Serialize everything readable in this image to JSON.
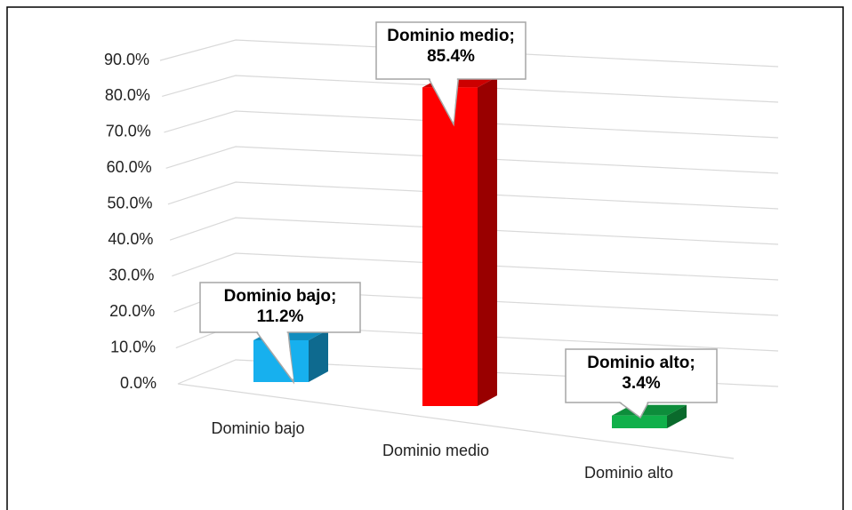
{
  "chart_data": {
    "type": "bar3d",
    "categories": [
      "Dominio bajo",
      "Dominio medio",
      "Dominio alto"
    ],
    "values": [
      11.2,
      85.4,
      3.4
    ],
    "value_labels": [
      "Dominio bajo; 11.2%",
      "Dominio medio; 85.4%",
      "Dominio alto; 3.4%"
    ],
    "colors": [
      "#17b0ee",
      "#ff0000",
      "#10b04a"
    ],
    "ylim": [
      0,
      90
    ],
    "yticks": [
      {
        "value": 0,
        "label": "0.0%"
      },
      {
        "value": 10,
        "label": "10.0%"
      },
      {
        "value": 20,
        "label": "20.0%"
      },
      {
        "value": 30,
        "label": "30.0%"
      },
      {
        "value": 40,
        "label": "40.0%"
      },
      {
        "value": 50,
        "label": "50.0%"
      },
      {
        "value": 60,
        "label": "60.0%"
      },
      {
        "value": 70,
        "label": "70.0%"
      },
      {
        "value": 80,
        "label": "80.0%"
      },
      {
        "value": 90,
        "label": "90.0%"
      }
    ],
    "grid": true
  }
}
